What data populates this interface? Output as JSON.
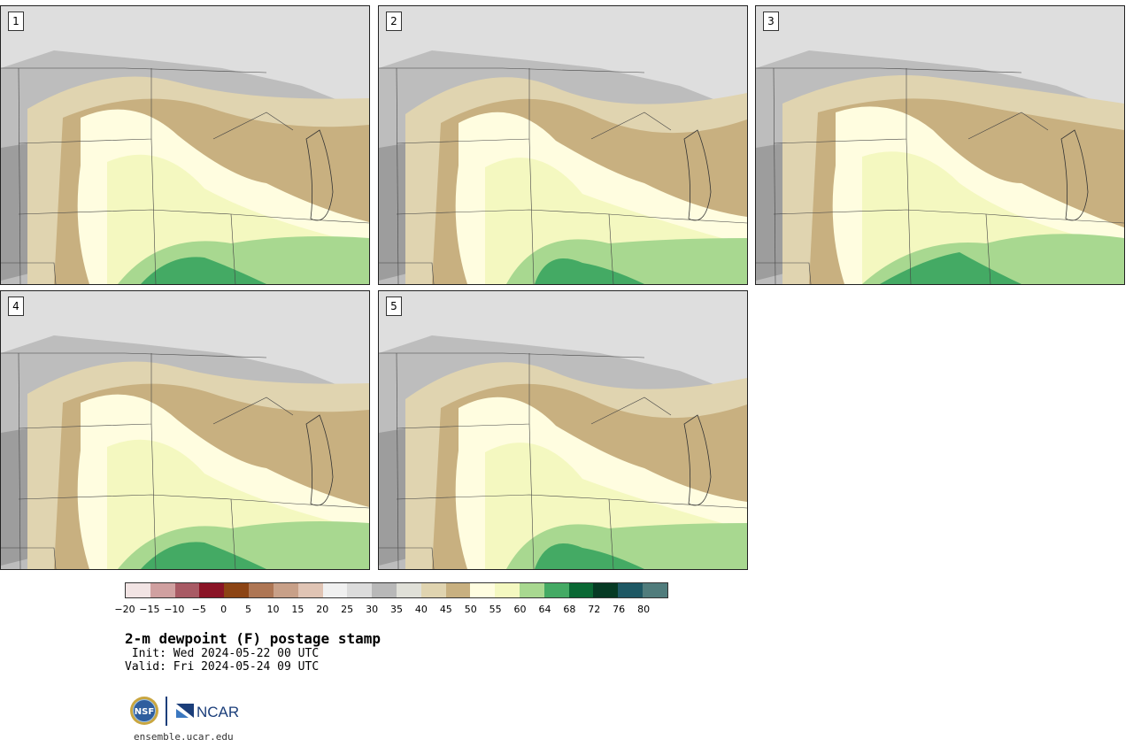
{
  "panels": [
    {
      "label": "1",
      "variant": 1
    },
    {
      "label": "2",
      "variant": 2
    },
    {
      "label": "3",
      "variant": 3
    },
    {
      "label": "4",
      "variant": 4
    },
    {
      "label": "5",
      "variant": 5
    }
  ],
  "colorbar": {
    "colors": [
      "#f2e4e4",
      "#d0a0a0",
      "#a85a64",
      "#8a1426",
      "#8c4414",
      "#ae7654",
      "#c8a088",
      "#e0c4b4",
      "#f0f0f0",
      "#dcdcdc",
      "#b8b8b8",
      "#e0e0d8",
      "#e0d4b0",
      "#c8b080",
      "#fffde0",
      "#f4f8c0",
      "#a8d890",
      "#44aa64",
      "#0a6834",
      "#063a24",
      "#1e5864",
      "#507c7c"
    ],
    "tick_labels": [
      "−20",
      "−15",
      "−10",
      "−5",
      "0",
      "5",
      "10",
      "15",
      "20",
      "25",
      "30",
      "35",
      "40",
      "45",
      "50",
      "55",
      "60",
      "64",
      "68",
      "72",
      "76",
      "80"
    ]
  },
  "title": "2-m dewpoint (F) postage stamp",
  "init": " Init: Wed 2024-05-22 00 UTC",
  "valid": "Valid: Fri 2024-05-24 09 UTC",
  "logos": {
    "nsf_text": "NSF",
    "ncar_text": "NCAR"
  },
  "site": "ensemble.ucar.edu"
}
